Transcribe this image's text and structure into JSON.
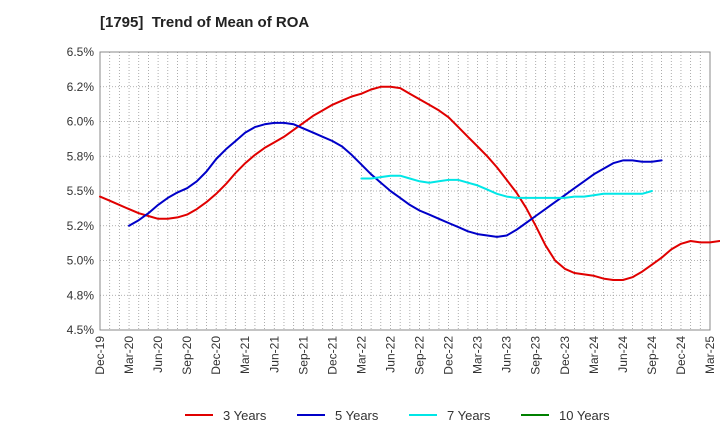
{
  "chart_data": {
    "type": "line",
    "title": "[1795]  Trend of Mean of ROA",
    "xlabel": "",
    "ylabel": "",
    "x_ticks": [
      "Dec-19",
      "Mar-20",
      "Jun-20",
      "Sep-20",
      "Dec-20",
      "Mar-21",
      "Jun-21",
      "Sep-21",
      "Dec-21",
      "Mar-22",
      "Jun-22",
      "Sep-22",
      "Dec-22",
      "Mar-23",
      "Jun-23",
      "Sep-23",
      "Dec-23",
      "Mar-24",
      "Jun-24",
      "Sep-24",
      "Dec-24",
      "Mar-25"
    ],
    "y_ticks": [
      "4.5%",
      "4.8%",
      "5.0%",
      "5.2%",
      "5.5%",
      "5.8%",
      "6.0%",
      "6.2%",
      "6.5%"
    ],
    "ylim": [
      4.5,
      6.5
    ],
    "grid": true,
    "legend_position": "bottom",
    "series": [
      {
        "name": "3 Years",
        "color": "#e00000",
        "start_index": 0,
        "values": [
          5.46,
          5.43,
          5.4,
          5.37,
          5.34,
          5.32,
          5.3,
          5.3,
          5.31,
          5.33,
          5.37,
          5.42,
          5.48,
          5.55,
          5.63,
          5.7,
          5.76,
          5.81,
          5.85,
          5.89,
          5.94,
          5.99,
          6.04,
          6.08,
          6.12,
          6.15,
          6.18,
          6.2,
          6.23,
          6.25,
          6.25,
          6.24,
          6.2,
          6.16,
          6.12,
          6.08,
          6.03,
          5.96,
          5.89,
          5.82,
          5.75,
          5.67,
          5.58,
          5.49,
          5.38,
          5.25,
          5.11,
          5.0,
          4.94,
          4.91,
          4.9,
          4.89,
          4.87,
          4.86,
          4.86,
          4.88,
          4.92,
          4.97,
          5.02,
          5.08,
          5.12,
          5.14,
          5.13,
          5.13,
          5.14,
          5.15
        ]
      },
      {
        "name": "5 Years",
        "color": "#0000c8",
        "start_index": 3,
        "values": [
          5.25,
          5.29,
          5.34,
          5.4,
          5.45,
          5.49,
          5.52,
          5.57,
          5.64,
          5.73,
          5.8,
          5.86,
          5.92,
          5.96,
          5.98,
          5.99,
          5.99,
          5.98,
          5.95,
          5.92,
          5.89,
          5.86,
          5.82,
          5.76,
          5.69,
          5.62,
          5.56,
          5.5,
          5.45,
          5.4,
          5.36,
          5.33,
          5.3,
          5.27,
          5.24,
          5.21,
          5.19,
          5.18,
          5.17,
          5.18,
          5.22,
          5.27,
          5.32,
          5.37,
          5.42,
          5.47,
          5.52,
          5.57,
          5.62,
          5.66,
          5.7,
          5.72,
          5.72,
          5.71,
          5.71,
          5.72
        ]
      },
      {
        "name": "7 Years",
        "color": "#00e6e6",
        "start_index": 27,
        "values": [
          5.59,
          5.59,
          5.6,
          5.61,
          5.61,
          5.59,
          5.57,
          5.56,
          5.57,
          5.58,
          5.58,
          5.56,
          5.54,
          5.51,
          5.48,
          5.46,
          5.45,
          5.45,
          5.45,
          5.45,
          5.45,
          5.45,
          5.46,
          5.46,
          5.47,
          5.48,
          5.48,
          5.48,
          5.48,
          5.48,
          5.5
        ]
      },
      {
        "name": "10 Years",
        "color": "#008000",
        "start_index": 0,
        "values": []
      }
    ]
  }
}
